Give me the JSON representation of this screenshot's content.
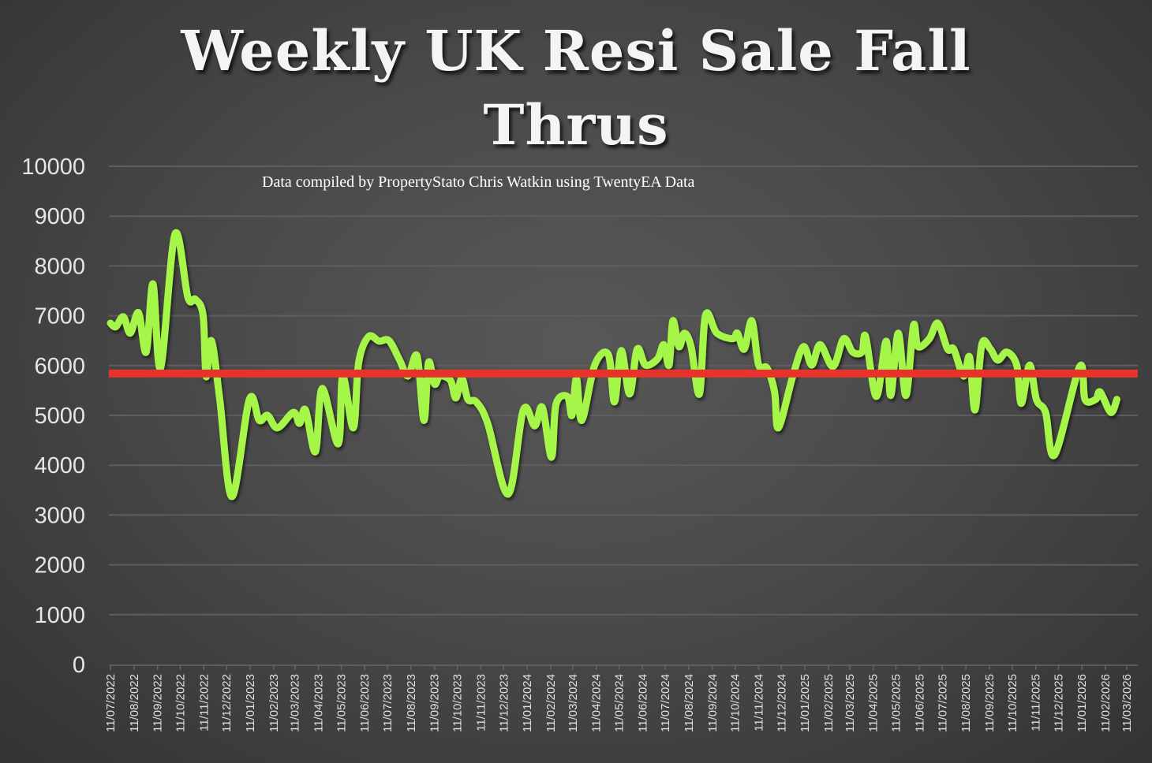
{
  "chart_data": {
    "type": "line",
    "title_lines": [
      "Weekly UK Resi Sale Fall",
      "Thrus"
    ],
    "annotation": "Data compiled by PropertyStato Chris Watkin using TwentyEA Data",
    "xlabel": "",
    "ylabel": "",
    "ylim": [
      0,
      10000
    ],
    "y_ticks": [
      0,
      1000,
      2000,
      3000,
      4000,
      5000,
      6000,
      7000,
      8000,
      9000,
      10000
    ],
    "x_ticks": [
      "11/07/2022",
      "11/08/2022",
      "11/09/2022",
      "11/10/2022",
      "11/11/2022",
      "11/12/2022",
      "11/01/2023",
      "11/02/2023",
      "11/03/2023",
      "11/04/2023",
      "11/05/2023",
      "11/06/2023",
      "11/07/2023",
      "11/08/2023",
      "11/09/2023",
      "11/10/2023",
      "11/11/2023",
      "11/12/2023",
      "11/01/2024",
      "11/02/2024",
      "11/03/2024",
      "11/04/2024",
      "11/05/2024",
      "11/06/2024",
      "11/07/2024",
      "11/08/2024",
      "11/09/2024",
      "11/10/2024",
      "11/11/2024",
      "11/12/2024",
      "11/01/2025",
      "11/02/2025",
      "11/03/2025",
      "11/04/2025",
      "11/05/2025",
      "11/06/2025",
      "11/07/2025",
      "11/08/2025",
      "11/09/2025",
      "11/10/2025",
      "11/11/2025",
      "11/12/2025",
      "11/01/2026",
      "11/02/2026",
      "11/03/2026"
    ],
    "grid": "horizontal",
    "colors": {
      "series": "#a6f54a",
      "reference_line": "#e8332a",
      "background": "#4a4a4a",
      "grid": "#5e5e5e"
    },
    "reference_line": {
      "value": 5840
    },
    "series": [
      {
        "points": [
          [
            "2022-07-11",
            6850
          ],
          [
            "2022-07-18",
            6780
          ],
          [
            "2022-07-28",
            6980
          ],
          [
            "2022-08-06",
            6650
          ],
          [
            "2022-08-17",
            7060
          ],
          [
            "2022-08-27",
            6270
          ],
          [
            "2022-09-05",
            7640
          ],
          [
            "2022-09-15",
            5950
          ],
          [
            "2022-10-04",
            8640
          ],
          [
            "2022-10-21",
            7370
          ],
          [
            "2022-10-31",
            7330
          ],
          [
            "2022-11-10",
            7010
          ],
          [
            "2022-11-14",
            5780
          ],
          [
            "2022-11-21",
            6500
          ],
          [
            "2022-12-02",
            5320
          ],
          [
            "2022-12-18",
            3370
          ],
          [
            "2023-01-10",
            5320
          ],
          [
            "2023-01-23",
            4900
          ],
          [
            "2023-02-03",
            5000
          ],
          [
            "2023-02-16",
            4750
          ],
          [
            "2023-03-09",
            5060
          ],
          [
            "2023-03-17",
            4840
          ],
          [
            "2023-03-25",
            5110
          ],
          [
            "2023-04-07",
            4270
          ],
          [
            "2023-04-16",
            5540
          ],
          [
            "2023-05-07",
            4430
          ],
          [
            "2023-05-13",
            5790
          ],
          [
            "2023-05-27",
            4750
          ],
          [
            "2023-06-03",
            6060
          ],
          [
            "2023-06-16",
            6580
          ],
          [
            "2023-06-30",
            6490
          ],
          [
            "2023-07-13",
            6500
          ],
          [
            "2023-07-27",
            6110
          ],
          [
            "2023-08-07",
            5790
          ],
          [
            "2023-08-19",
            6190
          ],
          [
            "2023-08-28",
            4900
          ],
          [
            "2023-09-03",
            6060
          ],
          [
            "2023-09-11",
            5630
          ],
          [
            "2023-09-18",
            5790
          ],
          [
            "2023-10-02",
            5700
          ],
          [
            "2023-10-09",
            5350
          ],
          [
            "2023-10-17",
            5740
          ],
          [
            "2023-10-25",
            5320
          ],
          [
            "2023-11-05",
            5270
          ],
          [
            "2023-11-20",
            4840
          ],
          [
            "2023-12-17",
            3420
          ],
          [
            "2024-01-06",
            5110
          ],
          [
            "2024-01-21",
            4790
          ],
          [
            "2024-01-31",
            5160
          ],
          [
            "2024-02-12",
            4160
          ],
          [
            "2024-02-18",
            5220
          ],
          [
            "2024-03-04",
            5380
          ],
          [
            "2024-03-10",
            5000
          ],
          [
            "2024-03-16",
            5740
          ],
          [
            "2024-03-23",
            4900
          ],
          [
            "2024-04-09",
            6010
          ],
          [
            "2024-04-27",
            6220
          ],
          [
            "2024-05-05",
            5270
          ],
          [
            "2024-05-14",
            6300
          ],
          [
            "2024-05-25",
            5430
          ],
          [
            "2024-06-04",
            6330
          ],
          [
            "2024-06-15",
            6010
          ],
          [
            "2024-07-01",
            6140
          ],
          [
            "2024-07-09",
            6420
          ],
          [
            "2024-07-16",
            6010
          ],
          [
            "2024-07-21",
            6900
          ],
          [
            "2024-07-29",
            6380
          ],
          [
            "2024-08-05",
            6650
          ],
          [
            "2024-08-14",
            6380
          ],
          [
            "2024-08-25",
            5430
          ],
          [
            "2024-09-02",
            7010
          ],
          [
            "2024-09-17",
            6650
          ],
          [
            "2024-10-08",
            6540
          ],
          [
            "2024-10-14",
            6650
          ],
          [
            "2024-10-23",
            6330
          ],
          [
            "2024-11-02",
            6900
          ],
          [
            "2024-11-11",
            6010
          ],
          [
            "2024-11-22",
            5950
          ],
          [
            "2024-12-02",
            5470
          ],
          [
            "2024-12-07",
            4750
          ],
          [
            "2024-12-26",
            5790
          ],
          [
            "2025-01-09",
            6380
          ],
          [
            "2025-01-20",
            6010
          ],
          [
            "2025-01-31",
            6420
          ],
          [
            "2025-02-17",
            5980
          ],
          [
            "2025-03-03",
            6540
          ],
          [
            "2025-03-15",
            6270
          ],
          [
            "2025-03-27",
            6270
          ],
          [
            "2025-04-01",
            6580
          ],
          [
            "2025-04-15",
            5380
          ],
          [
            "2025-04-28",
            6490
          ],
          [
            "2025-05-04",
            5400
          ],
          [
            "2025-05-14",
            6650
          ],
          [
            "2025-05-24",
            5400
          ],
          [
            "2025-06-03",
            6800
          ],
          [
            "2025-06-09",
            6380
          ],
          [
            "2025-06-24",
            6540
          ],
          [
            "2025-07-05",
            6850
          ],
          [
            "2025-07-18",
            6330
          ],
          [
            "2025-07-26",
            6330
          ],
          [
            "2025-08-08",
            5790
          ],
          [
            "2025-08-16",
            6170
          ],
          [
            "2025-08-23",
            5110
          ],
          [
            "2025-09-01",
            6420
          ],
          [
            "2025-09-12",
            6340
          ],
          [
            "2025-09-22",
            6110
          ],
          [
            "2025-10-04",
            6270
          ],
          [
            "2025-10-17",
            6010
          ],
          [
            "2025-10-23",
            5240
          ],
          [
            "2025-11-03",
            6010
          ],
          [
            "2025-11-12",
            5320
          ],
          [
            "2025-11-24",
            5060
          ],
          [
            "2025-12-06",
            4210
          ],
          [
            "2026-01-08",
            5980
          ],
          [
            "2026-01-15",
            5320
          ],
          [
            "2026-01-29",
            5320
          ],
          [
            "2026-02-04",
            5470
          ],
          [
            "2026-02-18",
            5060
          ],
          [
            "2026-02-26",
            5320
          ]
        ]
      }
    ]
  }
}
